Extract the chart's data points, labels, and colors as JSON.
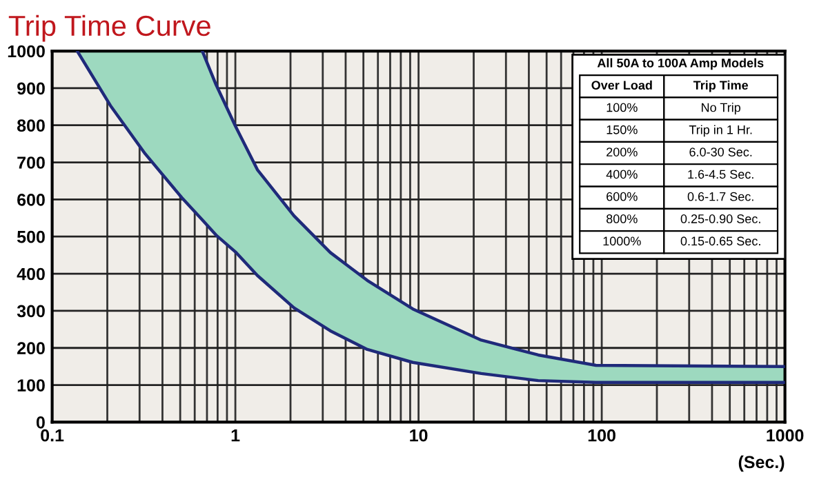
{
  "chart_data": {
    "type": "line",
    "title": "Trip Time Curve",
    "xlabel": "(Sec.)",
    "log": "x",
    "xlim": [
      0.1,
      1000
    ],
    "xticks": [
      0.1,
      1,
      10,
      100,
      1000
    ],
    "ylim": [
      0,
      1000
    ],
    "yticks": [
      0,
      100,
      200,
      300,
      400,
      500,
      600,
      700,
      800,
      900,
      1000
    ],
    "grid": true,
    "series": [
      {
        "color": "#1f2a7a",
        "x": [
          0.137,
          0.208,
          0.322,
          0.51,
          0.66,
          0.785,
          1,
          1.32,
          2.09,
          3.3,
          5.25,
          9.3,
          22,
          45,
          93,
          1000
        ],
        "values": [
          1000,
          853,
          723,
          605,
          545,
          504,
          459,
          395,
          308,
          246,
          196,
          161,
          131,
          112,
          107,
          107
        ],
        "lower": [
          1000,
          853,
          723,
          605,
          545,
          504,
          459,
          395,
          308,
          246,
          196,
          161,
          131,
          112,
          107,
          107
        ],
        "upper": [
          1000,
          1000,
          1000,
          1000,
          1000,
          909,
          798,
          680,
          556,
          457,
          382,
          305,
          221,
          181,
          153,
          150
        ]
      },
      {
        "color": "#1f2a7a",
        "x": [
          0.66,
          0.785,
          1,
          1.32,
          2.09,
          3.3,
          5.25,
          9.3,
          22,
          45,
          93,
          1000
        ],
        "values": [
          1000,
          909,
          798,
          680,
          556,
          457,
          382,
          305,
          221,
          181,
          153,
          150
        ]
      }
    ],
    "annotations": [
      "All 50A to 100A Amp Models",
      "Over Load",
      "Trip Time",
      "100%",
      "No Trip",
      "150%",
      "Trip in 1 Hr.",
      "200%",
      "6.0-30 Sec.",
      "400%",
      "1.6-4.5 Sec.",
      "600%",
      "0.6-1.7 Sec.",
      "800%",
      "0.25-0.90 Sec.",
      "1000%",
      "0.15-0.65 Sec."
    ]
  }
}
